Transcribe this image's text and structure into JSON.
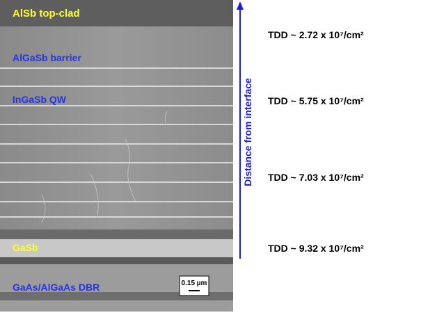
{
  "image_labels": [
    "AlSb top-clad",
    "AlGaSb barrier",
    "InGaSb QW",
    "GaSb",
    "GaAs/AlGaAs DBR"
  ],
  "scale_bar": "0.15 µm",
  "arrow_label": "Distance from interface",
  "annotations": [
    "TDD ~ 2.72 x 10⁷/cm²",
    "TDD ~ 5.75 x 10⁷/cm²",
    "TDD ~ 7.03 x 10⁷/cm²",
    "TDD ~ 9.32 x 10⁷/cm²"
  ]
}
